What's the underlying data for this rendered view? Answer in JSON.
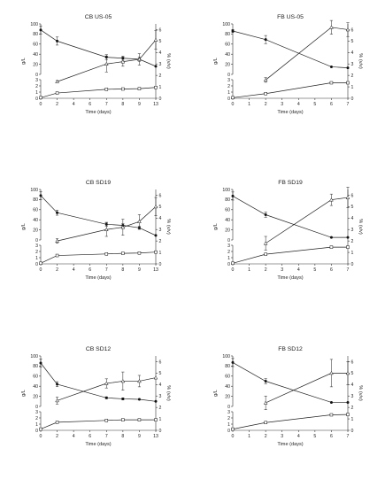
{
  "figure": {
    "y_unit_left": "g/L",
    "y_unit_right": "% (v/v)",
    "x_label": "Time (days)"
  },
  "chart_data": [
    {
      "type": "line",
      "title": "CB US-05",
      "x_ticks": [
        0,
        2,
        4,
        6,
        7,
        8,
        9,
        13
      ],
      "ylim_top": [
        0,
        100
      ],
      "ylim_bottom": [
        0,
        3
      ],
      "ylim_right": [
        0,
        6.5
      ],
      "xlabel": "Time (days)",
      "ylabel": "g/L",
      "ylabel_right": "% (v/v)",
      "series": [
        {
          "axis": "top",
          "marker": "filled-circle",
          "x": [
            0,
            2,
            7,
            8,
            9,
            13
          ],
          "y": [
            88,
            66,
            34,
            32,
            30,
            16
          ],
          "err": [
            8,
            8,
            5,
            4,
            4,
            0
          ]
        },
        {
          "axis": "right",
          "marker": "open-triangle",
          "x": [
            2,
            7,
            8,
            9,
            13
          ],
          "y": [
            1.45,
            3.0,
            3.2,
            3.4,
            5.1
          ],
          "err": [
            0.1,
            0.7,
            0.4,
            0.5,
            0.8
          ]
        },
        {
          "axis": "bottom",
          "marker": "open-square",
          "x": [
            0,
            2,
            7,
            8,
            9,
            13
          ],
          "y": [
            0.1,
            0.85,
            1.45,
            1.5,
            1.55,
            1.75
          ],
          "err": [
            0,
            0.1,
            0.1,
            0.1,
            0.1,
            0.1
          ]
        }
      ]
    },
    {
      "type": "line",
      "title": "FB US-05",
      "x_ticks": [
        0,
        1,
        2,
        3,
        4,
        5,
        6,
        7
      ],
      "ylim_top": [
        0,
        100
      ],
      "ylim_bottom": [
        0,
        3
      ],
      "ylim_right": [
        0,
        6.5
      ],
      "xlabel": "Time (days)",
      "ylabel": "g/L",
      "ylabel_right": "% (v/v)",
      "series": [
        {
          "axis": "top",
          "marker": "filled-circle",
          "x": [
            0,
            2,
            6,
            7
          ],
          "y": [
            86,
            69,
            15,
            13
          ],
          "err": [
            3,
            8,
            0,
            0
          ]
        },
        {
          "axis": "right",
          "marker": "open-triangle",
          "x": [
            2,
            6,
            7
          ],
          "y": [
            1.6,
            6.2,
            6.0
          ],
          "err": [
            0.2,
            0.6,
            0.6
          ]
        },
        {
          "axis": "bottom",
          "marker": "open-square",
          "x": [
            0,
            2,
            6,
            7
          ],
          "y": [
            0.1,
            0.75,
            2.5,
            2.5
          ],
          "err": [
            0,
            0.15,
            0.15,
            0.15
          ]
        }
      ]
    },
    {
      "type": "line",
      "title": "CB SD19",
      "x_ticks": [
        0,
        2,
        4,
        6,
        7,
        8,
        9,
        13
      ],
      "ylim_top": [
        0,
        100
      ],
      "ylim_bottom": [
        0,
        3
      ],
      "ylim_right": [
        0,
        6.5
      ],
      "xlabel": "Time (days)",
      "ylabel": "g/L",
      "ylabel_right": "% (v/v)",
      "series": [
        {
          "axis": "top",
          "marker": "filled-circle",
          "x": [
            0,
            2,
            7,
            8,
            9,
            13
          ],
          "y": [
            88,
            54,
            31,
            29,
            24,
            9
          ],
          "err": [
            8,
            5,
            4,
            3,
            3,
            0
          ]
        },
        {
          "axis": "right",
          "marker": "open-triangle",
          "x": [
            2,
            7,
            8,
            9,
            13
          ],
          "y": [
            2.0,
            3.0,
            3.2,
            3.7,
            5.0
          ],
          "err": [
            0.2,
            0.6,
            0.7,
            0.6,
            0.8
          ]
        },
        {
          "axis": "bottom",
          "marker": "open-square",
          "x": [
            0,
            2,
            7,
            8,
            9,
            13
          ],
          "y": [
            0.1,
            1.35,
            1.6,
            1.7,
            1.75,
            1.9
          ],
          "err": [
            0,
            0.1,
            0.1,
            0.1,
            0.1,
            0.1
          ]
        }
      ]
    },
    {
      "type": "line",
      "title": "FB SD19",
      "x_ticks": [
        0,
        1,
        2,
        3,
        4,
        5,
        6,
        7
      ],
      "ylim_top": [
        0,
        100
      ],
      "ylim_bottom": [
        0,
        3
      ],
      "ylim_right": [
        0,
        6.5
      ],
      "xlabel": "Time (days)",
      "ylabel": "g/L",
      "ylabel_right": "% (v/v)",
      "series": [
        {
          "axis": "top",
          "marker": "filled-circle",
          "x": [
            0,
            2,
            6,
            7
          ],
          "y": [
            87,
            50,
            5,
            5
          ],
          "err": [
            8,
            5,
            0,
            0
          ]
        },
        {
          "axis": "right",
          "marker": "open-triangle",
          "x": [
            2,
            6,
            7
          ],
          "y": [
            1.8,
            5.6,
            5.8
          ],
          "err": [
            0.6,
            0.5,
            0.9
          ]
        },
        {
          "axis": "bottom",
          "marker": "open-square",
          "x": [
            0,
            2,
            6,
            7
          ],
          "y": [
            0.1,
            1.55,
            2.7,
            2.7
          ],
          "err": [
            0,
            0.1,
            0.15,
            0.15
          ]
        }
      ]
    },
    {
      "type": "line",
      "title": "CB SD12",
      "x_ticks": [
        0,
        2,
        4,
        6,
        7,
        8,
        9,
        13
      ],
      "ylim_top": [
        0,
        100
      ],
      "ylim_bottom": [
        0,
        3
      ],
      "ylim_right": [
        0,
        6.5
      ],
      "xlabel": "Time (days)",
      "ylabel": "g/L",
      "ylabel_right": "% (v/v)",
      "series": [
        {
          "axis": "top",
          "marker": "filled-circle",
          "x": [
            0,
            2,
            7,
            8,
            9,
            13
          ],
          "y": [
            86,
            44,
            17,
            15,
            14,
            10
          ],
          "err": [
            8,
            5,
            2,
            2,
            0,
            0
          ]
        },
        {
          "axis": "right",
          "marker": "open-triangle",
          "x": [
            2,
            7,
            8,
            9,
            13
          ],
          "y": [
            2.6,
            4.1,
            4.3,
            4.3,
            4.6
          ],
          "err": [
            0.3,
            0.4,
            0.8,
            0.5,
            0
          ]
        },
        {
          "axis": "bottom",
          "marker": "open-square",
          "x": [
            0,
            2,
            7,
            8,
            9,
            13
          ],
          "y": [
            0.2,
            1.3,
            1.6,
            1.7,
            1.7,
            1.7
          ],
          "err": [
            0,
            0.1,
            0.1,
            0.1,
            0.1,
            0
          ]
        }
      ]
    },
    {
      "type": "line",
      "title": "FB SD12",
      "x_ticks": [
        0,
        1,
        2,
        3,
        4,
        5,
        6,
        7
      ],
      "ylim_top": [
        0,
        100
      ],
      "ylim_bottom": [
        0,
        3
      ],
      "ylim_right": [
        0,
        6.5
      ],
      "xlabel": "Time (days)",
      "ylabel": "g/L",
      "ylabel_right": "% (v/v)",
      "series": [
        {
          "axis": "top",
          "marker": "filled-circle",
          "x": [
            0,
            2,
            6,
            7
          ],
          "y": [
            87,
            50,
            8,
            8
          ],
          "err": [
            8,
            5,
            0,
            0
          ]
        },
        {
          "axis": "right",
          "marker": "open-triangle",
          "x": [
            2,
            6,
            7
          ],
          "y": [
            2.4,
            5.0,
            5.0
          ],
          "err": [
            0.6,
            1.2,
            1.0
          ]
        },
        {
          "axis": "bottom",
          "marker": "open-square",
          "x": [
            0,
            2,
            6,
            7
          ],
          "y": [
            0.2,
            1.25,
            2.5,
            2.55
          ],
          "err": [
            0,
            0.15,
            0.1,
            0.1
          ]
        }
      ]
    }
  ]
}
